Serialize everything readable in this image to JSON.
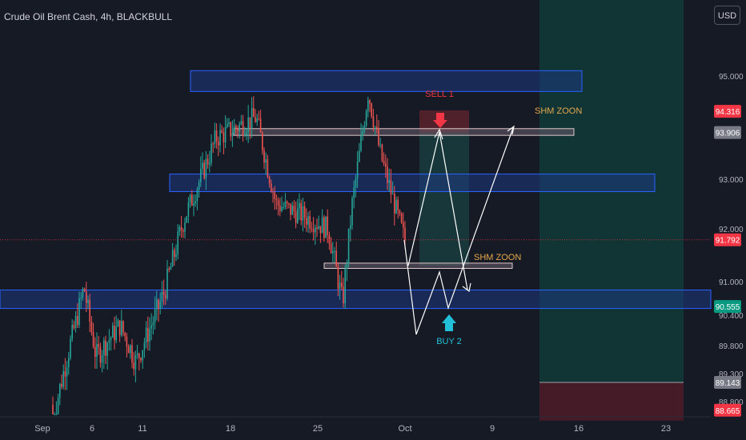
{
  "header": {
    "title": "Crude Oil Brent Cash, 4h, BLACKBULL",
    "currency": "USD"
  },
  "colors": {
    "background": "#161a25",
    "up": "#26a69a",
    "down": "#ef5350",
    "zone_blue": "#2962ff",
    "sell": "#f23645",
    "buy": "#22c0d8",
    "label": "#e5a84b"
  },
  "chart_data": {
    "type": "candlestick",
    "x_tick_labels": [
      "Sep",
      "6",
      "11",
      "18",
      "25",
      "Oct",
      "9",
      "16",
      "23"
    ],
    "y_tick_labels": [
      "95.000",
      "93.000",
      "92.000",
      "91.000",
      "90.400",
      "89.800",
      "89.300",
      "88.800"
    ],
    "y_range": [
      88.6,
      95.6
    ],
    "price_badges": [
      {
        "label": "94.316",
        "value": 94.316,
        "bg": "#f23645"
      },
      {
        "label": "93.906",
        "value": 93.906,
        "bg": "#787b86"
      },
      {
        "label": "91.792",
        "value": 91.792,
        "bg": "#f23645"
      },
      {
        "label": "90.555",
        "value": 90.555,
        "bg": "#089981"
      },
      {
        "label": "89.143",
        "value": 89.143,
        "bg": "#787b86"
      },
      {
        "label": "88.665",
        "value": 88.665,
        "bg": "#f23645"
      }
    ],
    "current_price": 91.792,
    "zones": [
      {
        "from": 94.7,
        "to": 95.1,
        "type": "resistance"
      },
      {
        "from": 93.85,
        "to": 93.98,
        "type": "shm-zone"
      },
      {
        "from": 92.75,
        "to": 93.1,
        "type": "range"
      },
      {
        "from": 91.25,
        "to": 91.35,
        "type": "shm-zone"
      },
      {
        "from": 90.52,
        "to": 90.85,
        "type": "support"
      }
    ],
    "annotations": {
      "sell_label": "SELL 1",
      "buy_label": "BUY 2",
      "zone_label_upper": "SHM ZOON",
      "zone_label_lower": "SHM ZOON"
    },
    "position": {
      "entry": 89.143,
      "take_profit": 95.6,
      "stop_loss": 88.665
    }
  }
}
